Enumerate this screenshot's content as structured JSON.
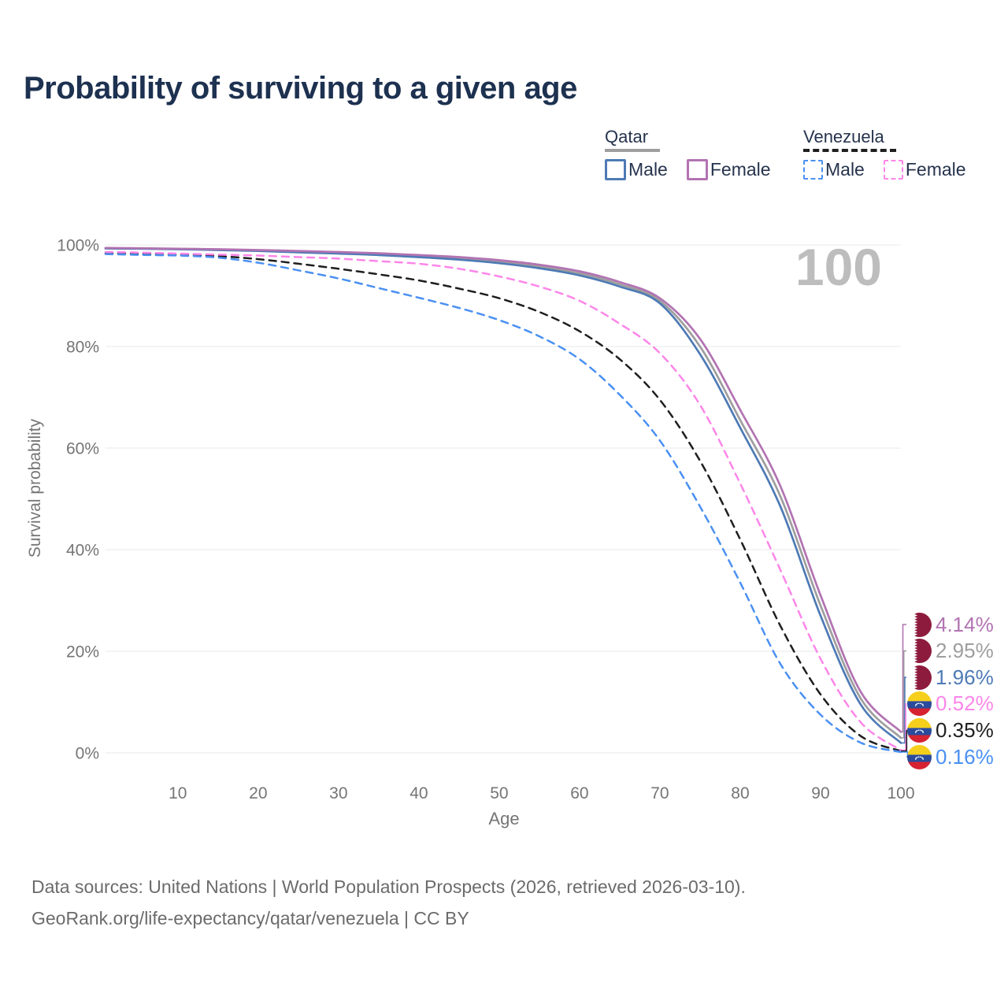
{
  "title": "Probability of surviving to a given age",
  "watermark": "100",
  "legend": {
    "groups": [
      {
        "country": "Qatar",
        "series_name": "Qatar (both sexes)",
        "items": [
          {
            "label": "Male",
            "series_name": "Qatar Male"
          },
          {
            "label": "Female",
            "series_name": "Qatar Female"
          }
        ]
      },
      {
        "country": "Venezuela",
        "series_name": "Venezuela (both sexes)",
        "items": [
          {
            "label": "Male",
            "series_name": "Venezuela Male"
          },
          {
            "label": "Female",
            "series_name": "Venezuela Female"
          }
        ]
      }
    ]
  },
  "y_axis": {
    "title": "Survival probability",
    "ticks": [
      {
        "label": "0%",
        "value": 0
      },
      {
        "label": "20%",
        "value": 20
      },
      {
        "label": "40%",
        "value": 40
      },
      {
        "label": "60%",
        "value": 60
      },
      {
        "label": "80%",
        "value": 80
      },
      {
        "label": "100%",
        "value": 100
      }
    ]
  },
  "x_axis": {
    "title": "Age",
    "ticks": [
      {
        "label": "10",
        "value": 10
      },
      {
        "label": "20",
        "value": 20
      },
      {
        "label": "30",
        "value": 30
      },
      {
        "label": "40",
        "value": 40
      },
      {
        "label": "50",
        "value": 50
      },
      {
        "label": "60",
        "value": 60
      },
      {
        "label": "70",
        "value": 70
      },
      {
        "label": "80",
        "value": 80
      },
      {
        "label": "90",
        "value": 90
      },
      {
        "label": "100",
        "value": 100
      }
    ]
  },
  "end_labels": [
    {
      "series_name": "Qatar Female",
      "value": "4.14%",
      "flag": "qatar",
      "color": "#b273b2"
    },
    {
      "series_name": "Qatar (both sexes)",
      "value": "2.95%",
      "flag": "qatar",
      "color": "#9e9e9e"
    },
    {
      "series_name": "Qatar Male",
      "value": "1.96%",
      "flag": "qatar",
      "color": "#4e7ab5"
    },
    {
      "series_name": "Venezuela Female",
      "value": "0.52%",
      "flag": "venezuela",
      "color": "#fd86e9"
    },
    {
      "series_name": "Venezuela (both sexes)",
      "value": "0.35%",
      "flag": "venezuela",
      "color": "#1f1f1f"
    },
    {
      "series_name": "Venezuela Male",
      "value": "0.16%",
      "flag": "venezuela",
      "color": "#4a90f2"
    }
  ],
  "footer": {
    "line1": "Data sources: United Nations | World Population Prospects (2026, retrieved 2026-03-10).",
    "line2": "GeoRank.org/life-expectancy/qatar/venezuela | CC BY"
  },
  "chart_data": {
    "type": "line",
    "title": "Probability of surviving to a given age",
    "xlabel": "Age",
    "ylabel": "Survival probability",
    "xlim": [
      1,
      100
    ],
    "ylim": [
      0,
      100
    ],
    "grid": "horizontal",
    "legend_position": "top-right",
    "x": [
      1,
      5,
      10,
      15,
      20,
      25,
      30,
      35,
      40,
      45,
      50,
      55,
      60,
      65,
      70,
      75,
      80,
      85,
      90,
      95,
      100
    ],
    "series": [
      {
        "name": "Qatar Male",
        "color": "#4e7ab5",
        "dash": "solid",
        "values": [
          99.3,
          99.25,
          99.15,
          99.0,
          98.8,
          98.55,
          98.3,
          98.0,
          97.6,
          97.1,
          96.4,
          95.4,
          94.0,
          91.8,
          88.5,
          78.5,
          64.0,
          48.5,
          27.0,
          9.5,
          1.96
        ]
      },
      {
        "name": "Qatar Female",
        "color": "#b273b2",
        "dash": "solid",
        "values": [
          99.4,
          99.35,
          99.25,
          99.15,
          99.0,
          98.8,
          98.6,
          98.35,
          98.0,
          97.6,
          97.0,
          96.1,
          94.8,
          92.7,
          89.5,
          81.5,
          67.5,
          52.5,
          31.0,
          12.0,
          4.14
        ]
      },
      {
        "name": "Qatar (both sexes)",
        "color": "#9e9e9e",
        "dash": "solid",
        "values": [
          99.35,
          99.3,
          99.2,
          99.05,
          98.9,
          98.65,
          98.45,
          98.15,
          97.8,
          97.35,
          96.7,
          95.75,
          94.4,
          92.25,
          89.0,
          80.0,
          65.5,
          50.5,
          29.0,
          10.7,
          2.95
        ]
      },
      {
        "name": "Venezuela Male",
        "color": "#4a90f2",
        "dash": "dashed",
        "values": [
          98.2,
          98.05,
          97.9,
          97.5,
          96.5,
          95.0,
          93.4,
          91.5,
          89.6,
          87.6,
          85.2,
          82.0,
          77.5,
          70.5,
          61.5,
          48.5,
          33.5,
          17.5,
          7.5,
          2.0,
          0.16
        ]
      },
      {
        "name": "Venezuela Female",
        "color": "#fd86e9",
        "dash": "dashed",
        "values": [
          98.6,
          98.5,
          98.3,
          98.1,
          97.9,
          97.6,
          97.3,
          96.8,
          96.3,
          95.3,
          93.8,
          91.8,
          89.0,
          84.5,
          78.7,
          68.5,
          53.0,
          36.0,
          18.5,
          6.0,
          0.52
        ]
      },
      {
        "name": "Venezuela (both sexes)",
        "color": "#1f1f1f",
        "dash": "dashed",
        "values": [
          98.4,
          98.3,
          98.1,
          97.8,
          97.2,
          96.3,
          95.3,
          94.2,
          93.0,
          91.4,
          89.5,
          86.8,
          83.0,
          77.5,
          69.5,
          57.5,
          42.0,
          25.0,
          11.5,
          3.3,
          0.35
        ]
      }
    ]
  }
}
